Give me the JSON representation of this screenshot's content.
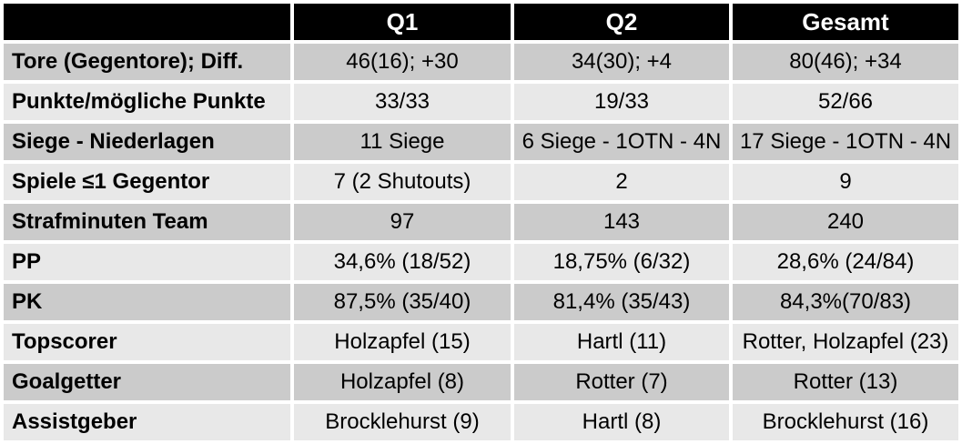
{
  "chart_data": {
    "type": "table",
    "title": "",
    "columns": [
      "",
      "Q1",
      "Q2",
      "Gesamt"
    ],
    "rows": [
      {
        "label": "Tore (Gegentore); Diff.",
        "values": [
          "46(16); +30",
          "34(30); +4",
          "80(46); +34"
        ]
      },
      {
        "label": "Punkte/mögliche Punkte",
        "values": [
          "33/33",
          "19/33",
          "52/66"
        ]
      },
      {
        "label": "Siege - Niederlagen",
        "values": [
          "11 Siege",
          "6 Siege - 1OTN - 4N",
          "17 Siege - 1OTN - 4N"
        ]
      },
      {
        "label": "Spiele ≤1 Gegentor",
        "values": [
          "7 (2 Shutouts)",
          "2",
          "9"
        ]
      },
      {
        "label": "Strafminuten Team",
        "values": [
          "97",
          "143",
          "240"
        ]
      },
      {
        "label": "PP",
        "values": [
          "34,6% (18/52)",
          "18,75% (6/32)",
          "28,6% (24/84)"
        ]
      },
      {
        "label": "PK",
        "values": [
          "87,5% (35/40)",
          "81,4% (35/43)",
          "84,3%(70/83)"
        ]
      },
      {
        "label": "Topscorer",
        "values": [
          "Holzapfel (15)",
          "Hartl (11)",
          "Rotter, Holzapfel (23)"
        ]
      },
      {
        "label": "Goalgetter",
        "values": [
          "Holzapfel (8)",
          "Rotter (7)",
          "Rotter (13)"
        ]
      },
      {
        "label": "Assistgeber",
        "values": [
          "Brocklehurst (9)",
          "Hartl (8)",
          "Brocklehurst (16)"
        ]
      }
    ],
    "colors": {
      "header_bg": "#000000",
      "header_text": "#ffffff",
      "row_band_dark": "#cbcbcb",
      "row_band_light": "#e8e8e8",
      "grid": "#ffffff",
      "body_text": "#000000"
    },
    "layout_hints": {
      "grid": "on",
      "banded_rows": true,
      "header_row": true
    }
  }
}
